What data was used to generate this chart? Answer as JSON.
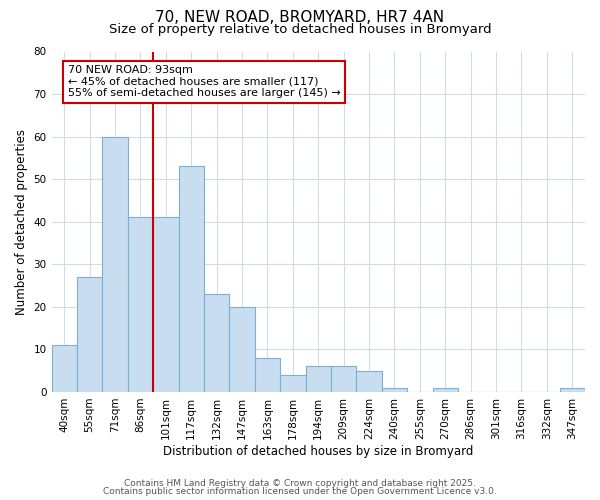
{
  "title": "70, NEW ROAD, BROMYARD, HR7 4AN",
  "subtitle": "Size of property relative to detached houses in Bromyard",
  "xlabel": "Distribution of detached houses by size in Bromyard",
  "ylabel": "Number of detached properties",
  "bar_categories": [
    "40sqm",
    "55sqm",
    "71sqm",
    "86sqm",
    "101sqm",
    "117sqm",
    "132sqm",
    "147sqm",
    "163sqm",
    "178sqm",
    "194sqm",
    "209sqm",
    "224sqm",
    "240sqm",
    "255sqm",
    "270sqm",
    "286sqm",
    "301sqm",
    "316sqm",
    "332sqm",
    "347sqm"
  ],
  "bar_values": [
    11,
    27,
    60,
    41,
    41,
    53,
    23,
    20,
    8,
    4,
    6,
    6,
    5,
    1,
    0,
    1,
    0,
    0,
    0,
    0,
    1
  ],
  "bar_color": "#c9ddf0",
  "bar_edgecolor": "#7ab0d4",
  "ylim": [
    0,
    80
  ],
  "yticks": [
    0,
    10,
    20,
    30,
    40,
    50,
    60,
    70,
    80
  ],
  "red_line_x": 3.5,
  "annotation_line1": "70 NEW ROAD: 93sqm",
  "annotation_line2": "← 45% of detached houses are smaller (117)",
  "annotation_line3": "55% of semi-detached houses are larger (145) →",
  "annotation_box_color": "#ffffff",
  "annotation_box_edgecolor": "#cc0000",
  "footer1": "Contains HM Land Registry data © Crown copyright and database right 2025.",
  "footer2": "Contains public sector information licensed under the Open Government Licence v3.0.",
  "background_color": "#ffffff",
  "grid_color": "#d0dce8",
  "title_fontsize": 11,
  "subtitle_fontsize": 9.5,
  "tick_fontsize": 7.5,
  "ylabel_fontsize": 8.5,
  "xlabel_fontsize": 8.5,
  "footer_fontsize": 6.5,
  "annot_fontsize": 8
}
